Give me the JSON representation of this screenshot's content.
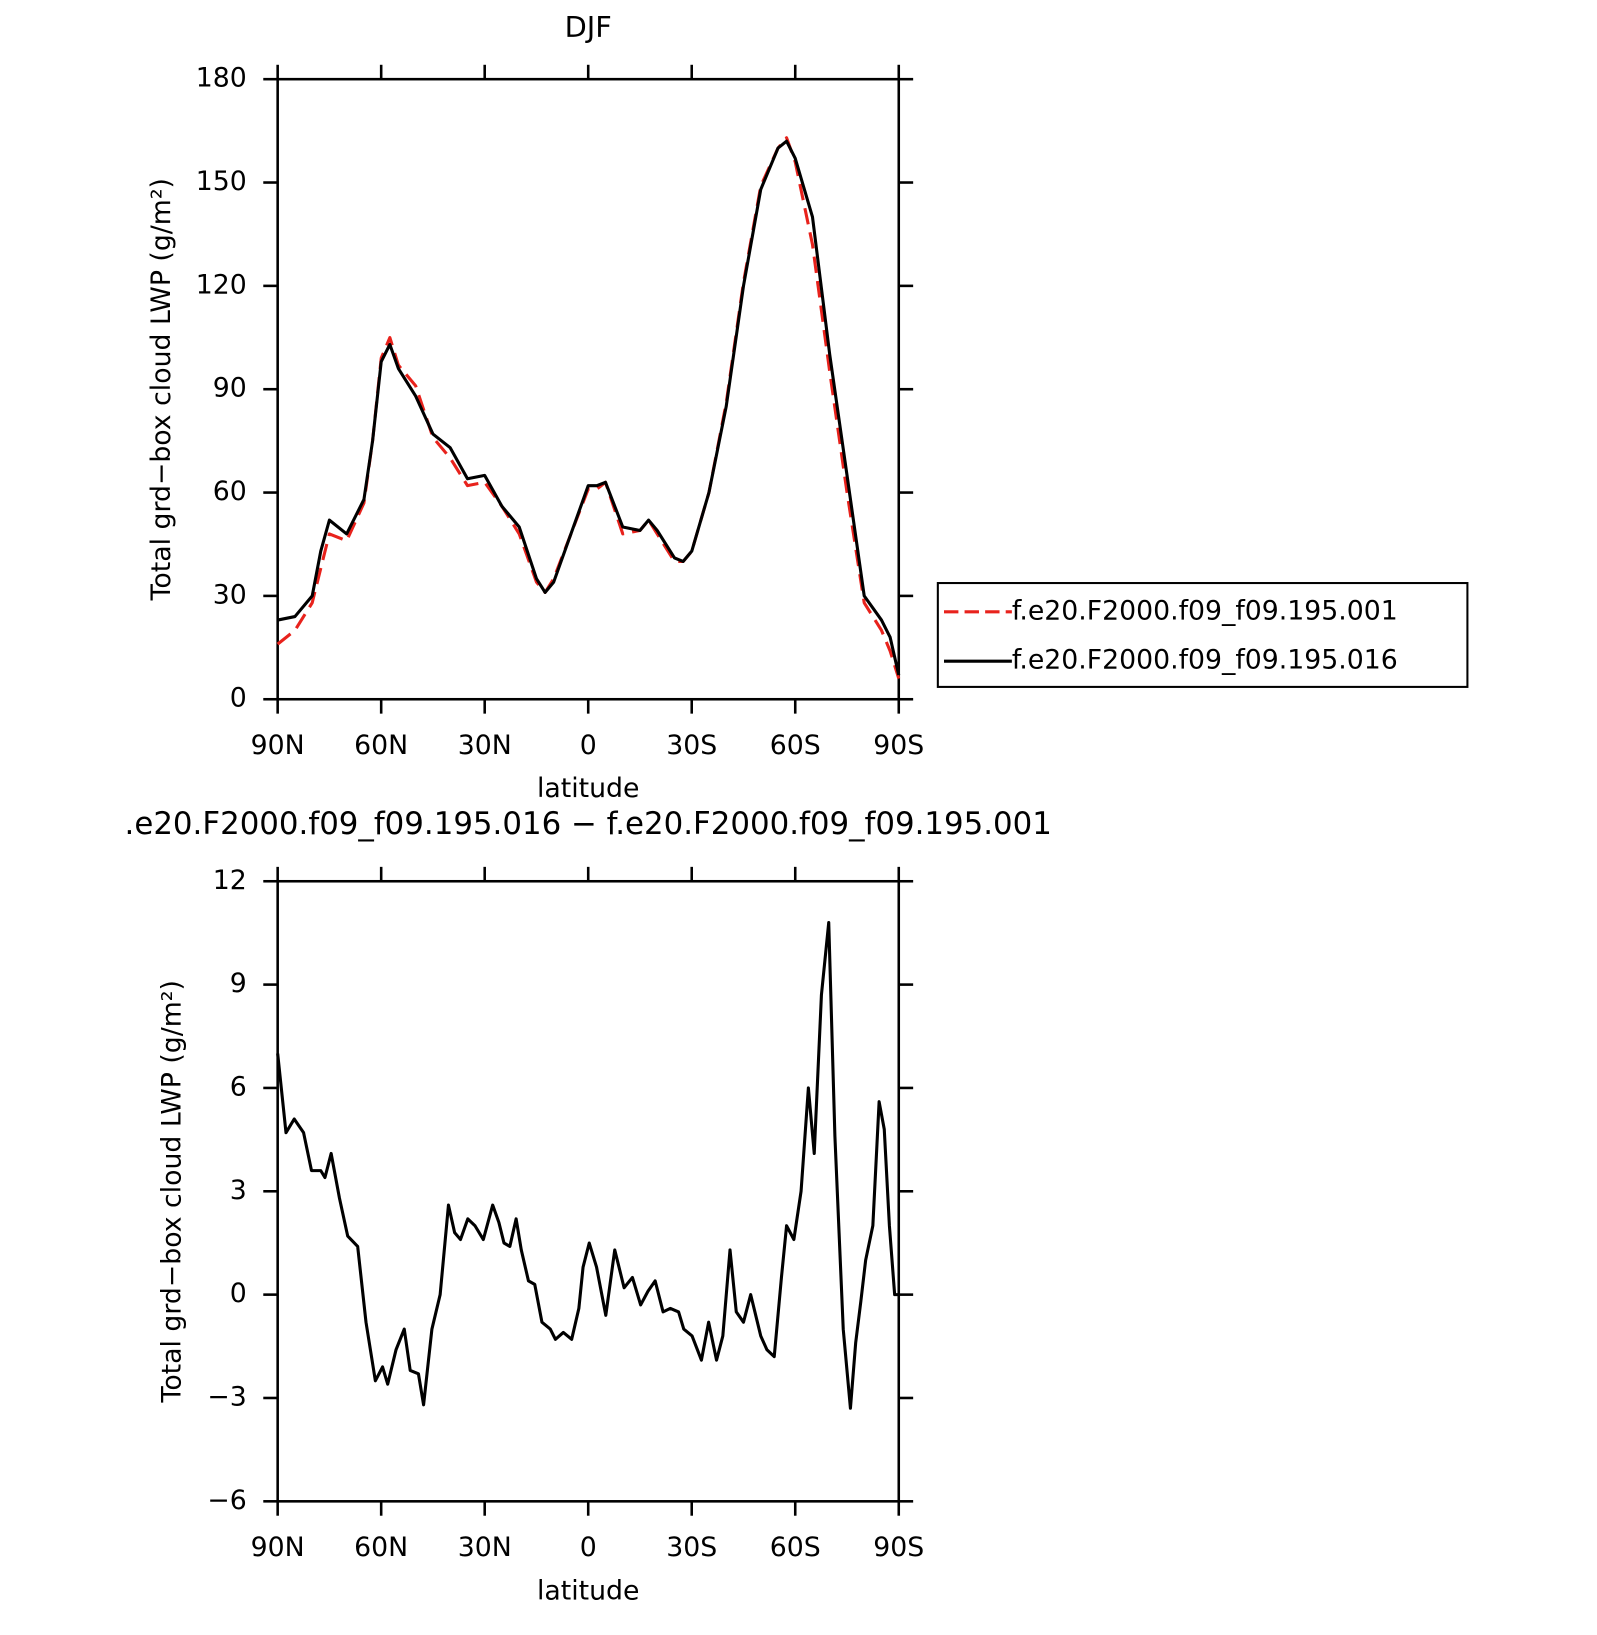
{
  "chart_data": [
    {
      "type": "line",
      "title": "DJF",
      "x_label": "latitude",
      "y_label": "Total grd−box cloud LWP (g/m²)",
      "xlim": [
        90,
        -90
      ],
      "xticks": [
        {
          "value": 90,
          "label": "90N"
        },
        {
          "value": 60,
          "label": "60N"
        },
        {
          "value": 30,
          "label": "30N"
        },
        0,
        {
          "value": -30,
          "label": "30S"
        },
        {
          "value": -60,
          "label": "60S"
        },
        {
          "value": -90,
          "label": "90S"
        }
      ],
      "ylim": [
        0,
        180
      ],
      "yticks": [
        0,
        30,
        60,
        90,
        120,
        150,
        180
      ],
      "legend": "right",
      "x": [
        90,
        85,
        80,
        77.5,
        75,
        70,
        65,
        62.5,
        60,
        57.5,
        55,
        50,
        45,
        40,
        35,
        30,
        25,
        20,
        15,
        12.5,
        10,
        5,
        0,
        -2.5,
        -5,
        -10,
        -15,
        -17.5,
        -20,
        -25,
        -27.5,
        -30,
        -35,
        -40,
        -45,
        -50,
        -55,
        -57.5,
        -60,
        -65,
        -70,
        -75,
        -80,
        -85,
        -87.5,
        -90
      ],
      "series": [
        {
          "name": "f.e20.F2000.f09_f09.195.001",
          "color": "#e8221c",
          "dashed": true,
          "values": [
            16,
            20,
            28,
            38,
            48,
            46,
            57,
            75,
            99,
            105,
            97,
            91,
            76,
            70,
            62,
            63,
            56,
            48,
            34,
            31,
            35,
            48,
            61,
            61,
            63,
            48,
            49,
            52,
            48,
            40,
            40,
            43,
            60,
            86,
            121,
            149,
            160,
            163,
            156,
            132,
            95,
            60,
            28,
            20,
            14,
            6
          ]
        },
        {
          "name": "f.e20.F2000.f09_f09.195.016",
          "color": "#000000",
          "dashed": false,
          "values": [
            23,
            24,
            30,
            43,
            52,
            48,
            58,
            75,
            98,
            103,
            96,
            88,
            77,
            73,
            64,
            65,
            56,
            50,
            35,
            31,
            34,
            48,
            62,
            62,
            63,
            50,
            49,
            52,
            49,
            41,
            40,
            43,
            60,
            85,
            120,
            148,
            160,
            162,
            157,
            140,
            100,
            65,
            30,
            23,
            18,
            7
          ]
        }
      ]
    },
    {
      "type": "line",
      "title": ".e20.F2000.f09_f09.195.016 − f.e20.F2000.f09_f09.195.001",
      "x_label": "latitude",
      "y_label": "Total grd−box cloud LWP (g/m²)",
      "xlim": [
        90,
        -90
      ],
      "xticks": [
        {
          "value": 90,
          "label": "90N"
        },
        {
          "value": 60,
          "label": "60N"
        },
        {
          "value": 30,
          "label": "30N"
        },
        0,
        {
          "value": -30,
          "label": "30S"
        },
        {
          "value": -60,
          "label": "60S"
        },
        {
          "value": -90,
          "label": "90S"
        }
      ],
      "ylim": [
        -6,
        12
      ],
      "yticks": [
        {
          "value": -6,
          "label": "−6"
        },
        {
          "value": -3,
          "label": "−3"
        },
        0,
        3,
        6,
        9,
        12
      ],
      "color": "#000000",
      "x": [
        90,
        87.6,
        85.2,
        82.5,
        80.2,
        77.5,
        76.3,
        74.5,
        72.1,
        69.7,
        66.8,
        64.4,
        61.7,
        59.6,
        58.1,
        55.7,
        53.3,
        51.6,
        49.2,
        47.7,
        45.3,
        42.9,
        40.5,
        38.7,
        37,
        34.9,
        32.8,
        30.4,
        27.7,
        25.9,
        24.4,
        22.7,
        20.9,
        19.4,
        17.3,
        15.5,
        13.4,
        11,
        9.5,
        7.2,
        4.8,
        2.7,
        1.5,
        -0.3,
        -2.4,
        -5.1,
        -7.7,
        -10.4,
        -12.8,
        -15.2,
        -17.3,
        -19.4,
        -21.7,
        -23.8,
        -26.2,
        -27.7,
        -30.1,
        -32.8,
        -34.9,
        -37.2,
        -39,
        -41.1,
        -42.9,
        -45,
        -47.1,
        -50,
        -51.8,
        -53.9,
        -56,
        -57.5,
        -59.6,
        -61.7,
        -63.8,
        -65.5,
        -67.6,
        -69.7,
        -71.5,
        -73.9,
        -76,
        -77.5,
        -79,
        -80.4,
        -82.5,
        -84.3,
        -85.8,
        -87.3,
        -88.8,
        -90
      ],
      "values": [
        7,
        4.7,
        5.1,
        4.7,
        3.6,
        3.6,
        3.4,
        4.1,
        2.8,
        1.7,
        1.4,
        -0.8,
        -2.5,
        -2.1,
        -2.6,
        -1.6,
        -1,
        -2.2,
        -2.3,
        -3.2,
        -1,
        0,
        2.6,
        1.8,
        1.6,
        2.2,
        2,
        1.6,
        2.6,
        2.1,
        1.5,
        1.4,
        2.2,
        1.3,
        0.4,
        0.3,
        -0.8,
        -1,
        -1.3,
        -1.1,
        -1.3,
        -0.4,
        0.8,
        1.5,
        0.8,
        -0.6,
        1.3,
        0.2,
        0.5,
        -0.3,
        0.1,
        0.4,
        -0.5,
        -0.4,
        -0.5,
        -1,
        -1.2,
        -1.9,
        -0.8,
        -1.9,
        -1.2,
        1.3,
        -0.5,
        -0.8,
        0,
        -1.2,
        -1.6,
        -1.8,
        0.5,
        2,
        1.6,
        3,
        6,
        4.1,
        8.7,
        10.8,
        4.6,
        -1,
        -3.3,
        -1.4,
        -0.2,
        1,
        2,
        5.6,
        4.8,
        2,
        0,
        0
      ]
    }
  ]
}
